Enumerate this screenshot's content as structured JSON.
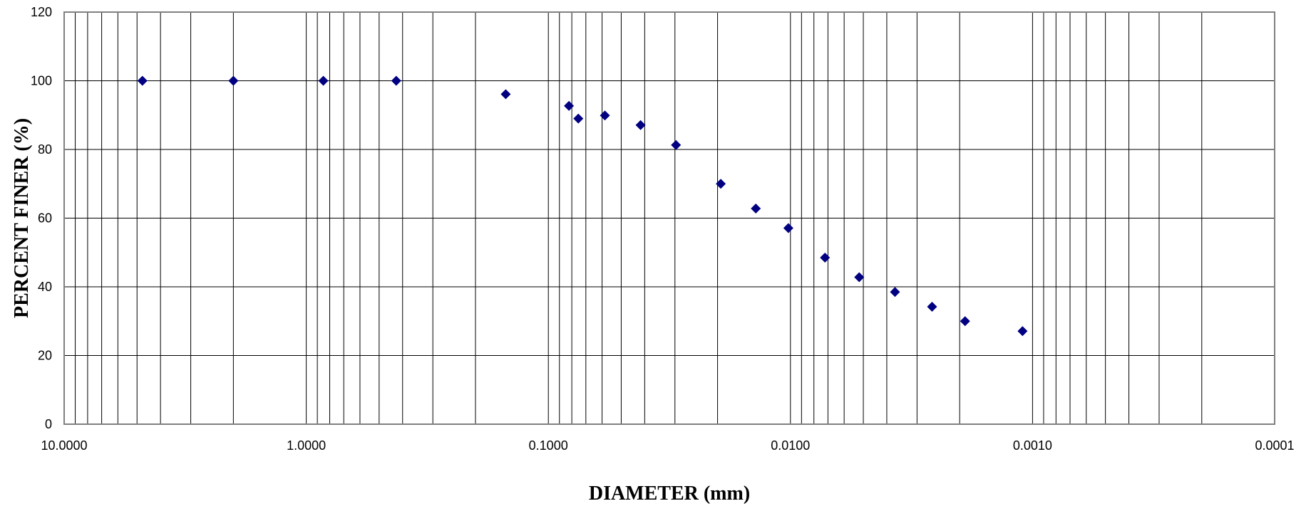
{
  "chart_data": {
    "type": "scatter",
    "xlabel": "DIAMETER (mm)",
    "ylabel": "PERCENT FINER (%)",
    "x_scale": "log",
    "x_reversed": true,
    "xlim": [
      10,
      0.0001
    ],
    "ylim": [
      0,
      120
    ],
    "x_tick_values": [
      10,
      1,
      0.1,
      0.01,
      0.001,
      0.0001
    ],
    "x_tick_labels": [
      "10.0000",
      "1.0000",
      "0.1000",
      "0.0100",
      "0.0010",
      "0.0001"
    ],
    "y_tick_values": [
      0,
      20,
      40,
      60,
      80,
      100,
      120
    ],
    "y_tick_labels": [
      "0",
      "20",
      "40",
      "60",
      "80",
      "100",
      "120"
    ],
    "grid": true,
    "marker": "diamond",
    "marker_color": "#000080",
    "series": [
      {
        "points": [
          {
            "x": 4.75,
            "y": 100
          },
          {
            "x": 2.0,
            "y": 100
          },
          {
            "x": 0.85,
            "y": 100
          },
          {
            "x": 0.425,
            "y": 100
          },
          {
            "x": 0.15,
            "y": 96.1
          },
          {
            "x": 0.0822,
            "y": 92.7
          },
          {
            "x": 0.0752,
            "y": 89.0
          },
          {
            "x": 0.0584,
            "y": 89.9
          },
          {
            "x": 0.0416,
            "y": 87.1
          },
          {
            "x": 0.0297,
            "y": 81.3
          },
          {
            "x": 0.0194,
            "y": 70.0
          },
          {
            "x": 0.0139,
            "y": 62.8
          },
          {
            "x": 0.0102,
            "y": 57.1
          },
          {
            "x": 0.0072,
            "y": 48.5
          },
          {
            "x": 0.0052,
            "y": 42.8
          },
          {
            "x": 0.0037,
            "y": 38.5
          },
          {
            "x": 0.0026,
            "y": 34.2
          },
          {
            "x": 0.0019,
            "y": 30.0
          },
          {
            "x": 0.0011,
            "y": 27.1
          }
        ]
      }
    ]
  }
}
